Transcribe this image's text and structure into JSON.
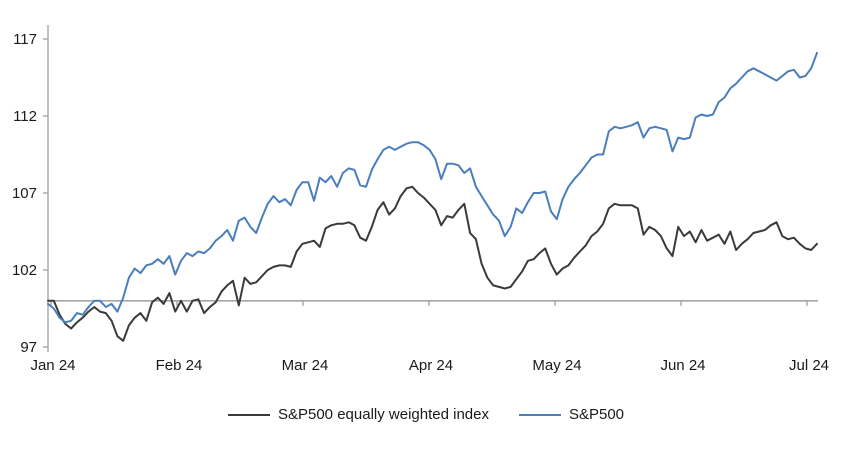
{
  "page": {
    "background": "#ffffff"
  },
  "chart_data": {
    "type": "line",
    "title": "",
    "xlabel": "",
    "ylabel": "",
    "grid": "off",
    "legend_position": "bottom-center",
    "axis_color": "#a6a6a6",
    "text_color": "#1a1a1a",
    "baseline_value": 100,
    "x_axis": {
      "labels": [
        "Jan 24",
        "Feb 24",
        "Mar 24",
        "Apr 24",
        "May 24",
        "Jun 24",
        "Jul 24"
      ]
    },
    "y_axis": {
      "tick_labels": [
        "97",
        "102",
        "107",
        "112",
        "117"
      ],
      "tick_values": [
        97,
        102,
        107,
        112,
        117
      ],
      "range": [
        97,
        117
      ]
    },
    "series": [
      {
        "name": "S&P500 equally weighted index",
        "color": "#3a3a3a",
        "values": [
          100.0,
          100.0,
          99.1,
          98.5,
          98.2,
          98.6,
          98.9,
          99.3,
          99.6,
          99.3,
          99.2,
          98.7,
          97.7,
          97.4,
          98.4,
          98.9,
          99.2,
          98.7,
          99.9,
          100.2,
          99.8,
          100.5,
          99.3,
          100.0,
          99.3,
          100.0,
          100.1,
          99.2,
          99.6,
          99.9,
          100.6,
          101.0,
          101.3,
          99.7,
          101.5,
          101.1,
          101.2,
          101.6,
          102.0,
          102.2,
          102.3,
          102.3,
          102.2,
          103.2,
          103.7,
          103.8,
          103.9,
          103.5,
          104.7,
          104.9,
          105.0,
          105.0,
          105.1,
          104.9,
          104.1,
          103.9,
          104.8,
          105.9,
          106.4,
          105.6,
          106.0,
          106.8,
          107.3,
          107.4,
          107.0,
          106.7,
          106.3,
          105.9,
          104.9,
          105.5,
          105.4,
          105.9,
          106.3,
          104.4,
          104.0,
          102.4,
          101.5,
          101.0,
          100.9,
          100.8,
          100.9,
          101.4,
          101.9,
          102.6,
          102.7,
          103.1,
          103.4,
          102.4,
          101.7,
          102.1,
          102.3,
          102.8,
          103.2,
          103.6,
          104.2,
          104.5,
          105.0,
          106.0,
          106.3,
          106.2,
          106.2,
          106.2,
          106.0,
          104.3,
          104.8,
          104.6,
          104.2,
          103.4,
          102.9,
          104.8,
          104.2,
          104.5,
          103.8,
          104.6,
          103.9,
          104.1,
          104.3,
          103.7,
          104.5,
          103.3,
          103.7,
          104.0,
          104.4,
          104.5,
          104.6,
          104.9,
          105.1,
          104.2,
          104.0,
          104.1,
          103.7,
          103.4,
          103.3,
          103.7
        ]
      },
      {
        "name": "S&P500",
        "color": "#4a7ebc",
        "values": [
          99.8,
          99.5,
          98.9,
          98.6,
          98.7,
          99.2,
          99.1,
          99.6,
          100.0,
          100.0,
          99.6,
          99.8,
          99.3,
          100.2,
          101.5,
          102.1,
          101.8,
          102.3,
          102.4,
          102.7,
          102.4,
          102.9,
          101.7,
          102.6,
          103.1,
          102.9,
          103.2,
          103.1,
          103.4,
          103.9,
          104.2,
          104.6,
          103.9,
          105.2,
          105.4,
          104.8,
          104.4,
          105.4,
          106.3,
          106.8,
          106.4,
          106.6,
          106.2,
          107.2,
          107.7,
          107.7,
          106.5,
          108.0,
          107.7,
          108.1,
          107.4,
          108.3,
          108.6,
          108.5,
          107.5,
          107.4,
          108.5,
          109.2,
          109.8,
          110.0,
          109.8,
          110.0,
          110.2,
          110.3,
          110.3,
          110.1,
          109.8,
          109.2,
          107.9,
          108.9,
          108.9,
          108.8,
          108.3,
          108.6,
          107.4,
          106.8,
          106.2,
          105.6,
          105.2,
          104.2,
          104.8,
          106.0,
          105.7,
          106.4,
          107.0,
          107.0,
          107.1,
          105.8,
          105.3,
          106.6,
          107.4,
          107.9,
          108.3,
          108.8,
          109.3,
          109.5,
          109.5,
          111.0,
          111.3,
          111.2,
          111.3,
          111.4,
          111.6,
          110.6,
          111.2,
          111.3,
          111.2,
          111.1,
          109.7,
          110.6,
          110.5,
          110.6,
          111.9,
          112.1,
          112.0,
          112.1,
          112.9,
          113.2,
          113.8,
          114.1,
          114.5,
          114.9,
          115.1,
          114.9,
          114.7,
          114.5,
          114.3,
          114.6,
          114.9,
          115.0,
          114.5,
          114.6,
          115.1,
          116.1
        ]
      }
    ]
  }
}
